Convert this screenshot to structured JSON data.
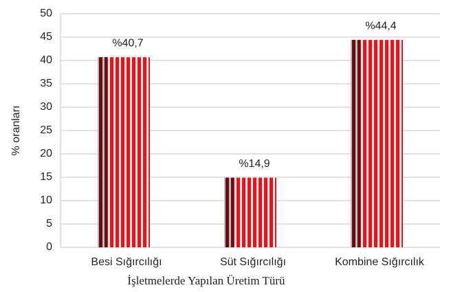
{
  "chart_data": {
    "type": "bar",
    "x_label": "İşletmelerde Yapılan Üretim Türü",
    "y_label": "% oranları",
    "categories": [
      "Besi Sığırcılığı",
      "Süt Sığırcılığı",
      "Kombine Sığırcılık"
    ],
    "values": [
      40.7,
      14.9,
      44.4
    ],
    "value_labels": [
      "%40,7",
      "%14,9",
      "%44,4"
    ],
    "color": "#e8141c",
    "ylim": [
      0,
      50
    ],
    "yticks": [
      0,
      5,
      10,
      15,
      20,
      25,
      30,
      35,
      40,
      45,
      50
    ],
    "grid": true
  }
}
